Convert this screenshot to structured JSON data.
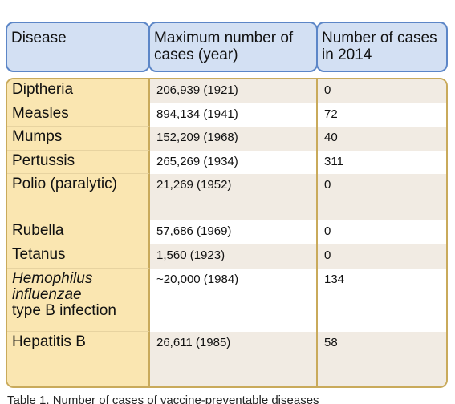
{
  "table": {
    "headers": [
      "Disease",
      "Maximum number of cases (year)",
      "Number of cases in 2014"
    ],
    "rows": [
      {
        "disease": "Diptheria",
        "max_cases": "206,939 (1921)",
        "cases_2014": "0"
      },
      {
        "disease": "Measles",
        "max_cases": "894,134 (1941)",
        "cases_2014": "72"
      },
      {
        "disease": "Mumps",
        "max_cases": "152,209 (1968)",
        "cases_2014": "40"
      },
      {
        "disease": "Pertussis",
        "max_cases": "265,269 (1934)",
        "cases_2014": "311"
      },
      {
        "disease": "Polio (paralytic)",
        "max_cases": "21,269 (1952)",
        "cases_2014": "0"
      },
      {
        "disease": "Rubella",
        "max_cases": "57,686 (1969)",
        "cases_2014": "0"
      },
      {
        "disease": "Tetanus",
        "max_cases": "1,560 (1923)",
        "cases_2014": "0"
      },
      {
        "disease_italic": "Hemophilus influenzae",
        "disease": "type B infection",
        "max_cases": "~20,000 (1984)",
        "cases_2014": "134"
      },
      {
        "disease": "Hepatitis B",
        "max_cases": "26,611 (1985)",
        "cases_2014": "58"
      }
    ]
  },
  "caption": "Table 1. Number of cases of vaccine-preventable diseases"
}
